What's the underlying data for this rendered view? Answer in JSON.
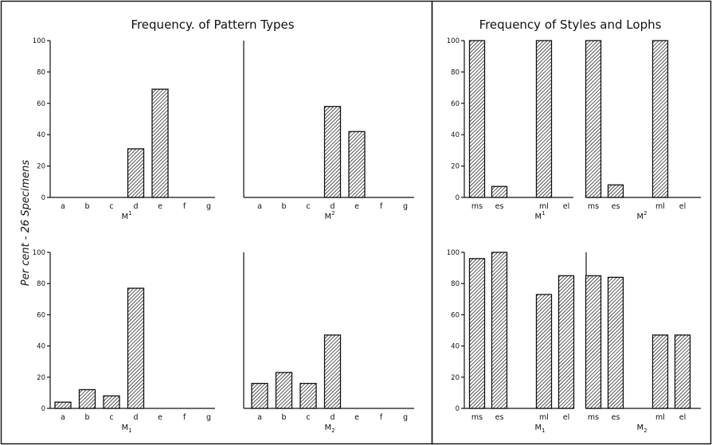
{
  "figure": {
    "ylabel": "Per cent - 26 Specimens"
  },
  "sections": [
    {
      "title": "Frequency. of Pattern Types"
    },
    {
      "title": "Frequency of Styles and Lophs"
    }
  ],
  "chart_data": [
    {
      "type": "bar",
      "section": "Frequency. of Pattern Types",
      "label": "M",
      "label_script": "sup",
      "label_mark": "1",
      "categories": [
        "a",
        "b",
        "c",
        "d",
        "e",
        "f",
        "g"
      ],
      "values": [
        0,
        0,
        0,
        31,
        69,
        0,
        0
      ],
      "ylim": [
        0,
        100
      ],
      "yticks": [
        0,
        20,
        40,
        60,
        80,
        100
      ]
    },
    {
      "type": "bar",
      "section": "Frequency. of Pattern Types",
      "label": "M",
      "label_script": "sup",
      "label_mark": "2",
      "categories": [
        "a",
        "b",
        "c",
        "d",
        "e",
        "f",
        "g"
      ],
      "values": [
        0,
        0,
        0,
        58,
        42,
        0,
        0
      ],
      "ylim": [
        0,
        100
      ]
    },
    {
      "type": "bar",
      "section": "Frequency. of Pattern Types",
      "label": "M",
      "label_script": "sub",
      "label_mark": "1",
      "categories": [
        "a",
        "b",
        "c",
        "d",
        "e",
        "f",
        "g"
      ],
      "values": [
        4,
        12,
        8,
        77,
        0,
        0,
        0
      ],
      "ylim": [
        0,
        100
      ],
      "yticks": [
        0,
        20,
        40,
        60,
        80,
        100
      ]
    },
    {
      "type": "bar",
      "section": "Frequency. of Pattern Types",
      "label": "M",
      "label_script": "sub",
      "label_mark": "2",
      "categories": [
        "a",
        "b",
        "c",
        "d",
        "e",
        "f",
        "g"
      ],
      "values": [
        16,
        23,
        16,
        47,
        0,
        0,
        0
      ],
      "ylim": [
        0,
        100
      ]
    },
    {
      "type": "bar",
      "section": "Frequency of Styles and Lophs",
      "label": "M",
      "label_script": "sup",
      "label_mark": "1",
      "categories": [
        "ms",
        "es",
        "ml",
        "el"
      ],
      "slot_positions": [
        1,
        2,
        4,
        5
      ],
      "values": [
        100,
        7,
        100,
        0
      ],
      "ylim": [
        0,
        100
      ],
      "yticks": [
        0,
        20,
        40,
        60,
        80,
        100
      ]
    },
    {
      "type": "bar",
      "section": "Frequency of Styles and Lophs",
      "label": "M",
      "label_script": "sup",
      "label_mark": "2",
      "categories": [
        "ms",
        "es",
        "ml",
        "el"
      ],
      "slot_positions": [
        1,
        2,
        4,
        5
      ],
      "values": [
        100,
        8,
        100,
        0
      ],
      "ylim": [
        0,
        100
      ]
    },
    {
      "type": "bar",
      "section": "Frequency of Styles and Lophs",
      "label": "M",
      "label_script": "sub",
      "label_mark": "1",
      "categories": [
        "ms",
        "es",
        "ml",
        "el"
      ],
      "slot_positions": [
        1,
        2,
        4,
        5
      ],
      "values": [
        96,
        100,
        73,
        85
      ],
      "ylim": [
        0,
        100
      ],
      "yticks": [
        0,
        20,
        40,
        60,
        80,
        100
      ]
    },
    {
      "type": "bar",
      "section": "Frequency of Styles and Lophs",
      "label": "M",
      "label_script": "sub",
      "label_mark": "2",
      "categories": [
        "ms",
        "es",
        "ml",
        "el"
      ],
      "slot_positions": [
        1,
        2,
        4,
        5
      ],
      "values": [
        85,
        84,
        47,
        47
      ],
      "ylim": [
        0,
        100
      ]
    }
  ]
}
